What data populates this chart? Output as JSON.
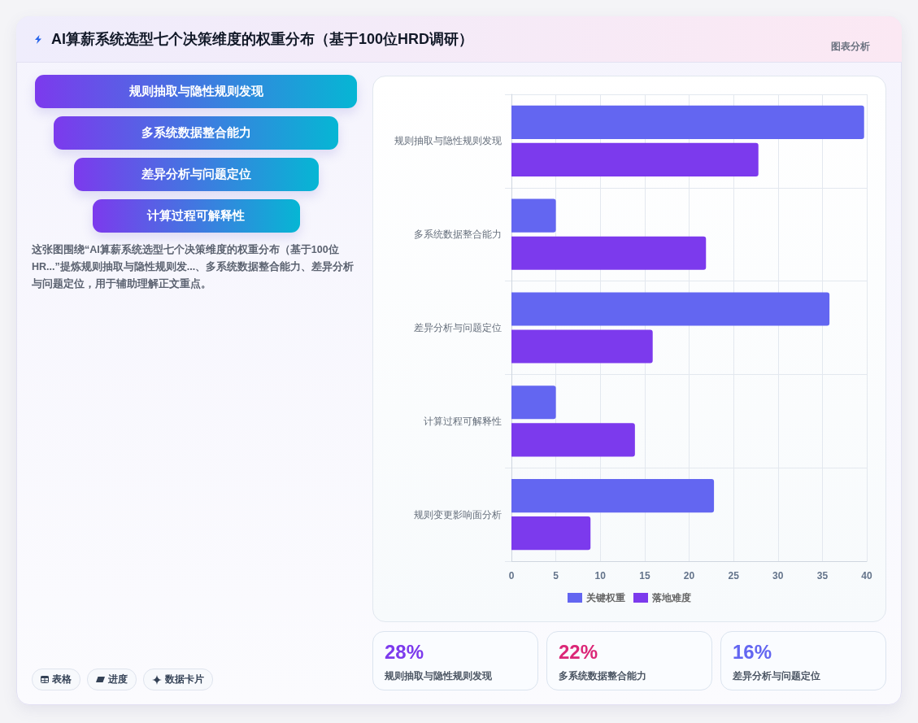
{
  "chart_data": [
    {
      "type": "other",
      "title": "AI算薪系统选型七个决策维度的权重分布（基于100位HRD调研）",
      "categories": [
        "规则抽取与隐性规则发现",
        "多系统数据整合能力",
        "差异分析与问题定位",
        "计算过程可解释性"
      ],
      "annotations": [
        "这张图围绕“AI算薪系统选型七个决策维度的权重分布（基于100位HR...”提炼规则抽取与隐性规则发...、多系统数据整合能力、差异分析与问题定位，用于辅助理解正文重点。",
        "表格",
        "进度",
        "数据卡片"
      ]
    },
    {
      "type": "bar",
      "annotations": [
        "图表分析"
      ],
      "orientation": "horizontal",
      "categories": [
        "规则抽取与隐性规则发现",
        "多系统数据整合能力",
        "差异分析与问题定位",
        "计算过程可解释性",
        "规则变更影响面分析"
      ],
      "series": [
        {
          "name": "关键权重",
          "color": "#6366f1",
          "values": [
            39.7,
            5,
            35.8,
            5,
            22.8
          ]
        },
        {
          "name": "落地难度",
          "color": "#7c3aed",
          "values": [
            27.8,
            21.9,
            15.9,
            13.9,
            8.9
          ]
        }
      ],
      "xlim": [
        0,
        40
      ],
      "xticks": [
        0,
        5,
        10,
        15,
        20,
        25,
        30,
        35,
        40
      ],
      "grid": true,
      "legend": "bottom"
    },
    {
      "type": "other",
      "categories": [
        "规则抽取与隐性规则发现",
        "多系统数据整合能力",
        "差异分析与问题定位"
      ],
      "value_labels": [
        "28%",
        "22%",
        "16%"
      ]
    }
  ]
}
